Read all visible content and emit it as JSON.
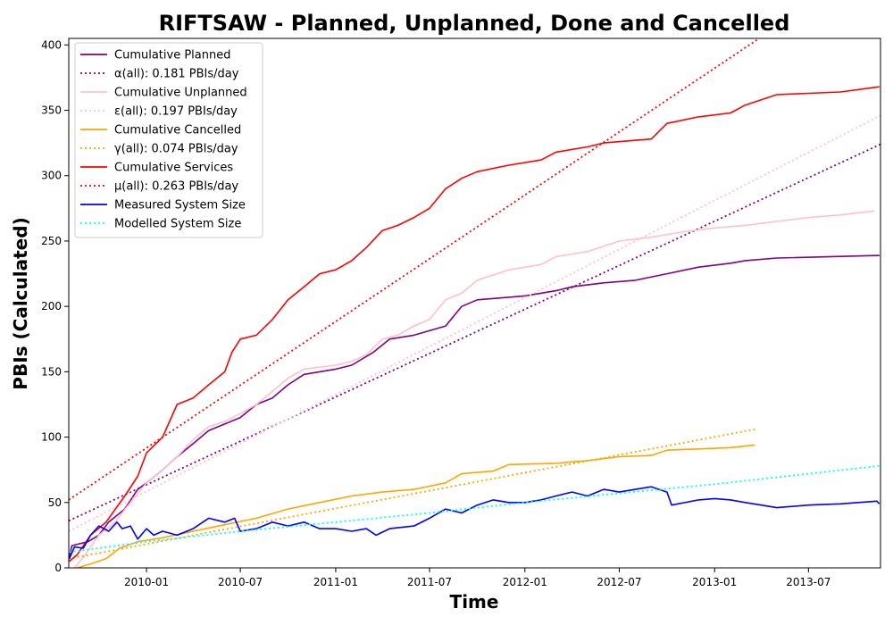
{
  "chart_data": {
    "type": "line",
    "title": "RIFTSAW - Planned, Unplanned, Done  and Cancelled",
    "xlabel": "Time",
    "ylabel": "PBIs (Calculated)",
    "xlim": [
      "2009-08-04",
      "2013-11-17"
    ],
    "ylim": [
      0,
      405
    ],
    "x_ticks": [
      "2010-01",
      "2010-07",
      "2011-01",
      "2011-07",
      "2012-01",
      "2012-07",
      "2013-01",
      "2013-07"
    ],
    "y_ticks": [
      0,
      50,
      100,
      150,
      200,
      250,
      300,
      350,
      400
    ],
    "grid": false,
    "legend_position": "top-left",
    "series": [
      {
        "name": "Cumulative Planned",
        "color": "#800080",
        "style": "solid",
        "points": [
          [
            "2009-08-05",
            8
          ],
          [
            "2009-08-10",
            17
          ],
          [
            "2009-09-10",
            20
          ],
          [
            "2009-10-01",
            25
          ],
          [
            "2009-10-20",
            35
          ],
          [
            "2009-11-20",
            45
          ],
          [
            "2009-12-15",
            60
          ],
          [
            "2010-01-01",
            65
          ],
          [
            "2010-02-01",
            75
          ],
          [
            "2010-03-01",
            85
          ],
          [
            "2010-04-01",
            95
          ],
          [
            "2010-05-01",
            105
          ],
          [
            "2010-06-01",
            110
          ],
          [
            "2010-07-01",
            115
          ],
          [
            "2010-08-01",
            125
          ],
          [
            "2010-09-01",
            130
          ],
          [
            "2010-10-01",
            140
          ],
          [
            "2010-11-01",
            148
          ],
          [
            "2011-01-01",
            152
          ],
          [
            "2011-02-01",
            155
          ],
          [
            "2011-03-15",
            165
          ],
          [
            "2011-04-15",
            175
          ],
          [
            "2011-06-01",
            178
          ],
          [
            "2011-08-01",
            185
          ],
          [
            "2011-09-01",
            200
          ],
          [
            "2011-10-01",
            205
          ],
          [
            "2012-01-01",
            208
          ],
          [
            "2012-03-01",
            212
          ],
          [
            "2012-04-01",
            215
          ],
          [
            "2012-06-01",
            218
          ],
          [
            "2012-08-01",
            220
          ],
          [
            "2012-10-01",
            225
          ],
          [
            "2012-12-01",
            230
          ],
          [
            "2013-02-01",
            233
          ],
          [
            "2013-03-01",
            235
          ],
          [
            "2013-05-01",
            237
          ],
          [
            "2013-11-15",
            239
          ]
        ]
      },
      {
        "name": "α(all): 0.181 PBIs/day",
        "color": "#800080",
        "style": "dotted",
        "points": [
          [
            "2009-08-04",
            36
          ],
          [
            "2013-11-17",
            324
          ]
        ]
      },
      {
        "name": "Cumulative Unplanned",
        "color": "#ffc0cb",
        "style": "solid",
        "points": [
          [
            "2009-08-15",
            0
          ],
          [
            "2009-09-01",
            8
          ],
          [
            "2009-10-01",
            25
          ],
          [
            "2009-11-01",
            35
          ],
          [
            "2009-12-01",
            50
          ],
          [
            "2010-01-01",
            65
          ],
          [
            "2010-02-01",
            75
          ],
          [
            "2010-03-01",
            85
          ],
          [
            "2010-04-01",
            98
          ],
          [
            "2010-05-01",
            108
          ],
          [
            "2010-06-01",
            112
          ],
          [
            "2010-07-01",
            118
          ],
          [
            "2010-08-01",
            125
          ],
          [
            "2010-09-01",
            135
          ],
          [
            "2010-10-01",
            145
          ],
          [
            "2010-11-01",
            152
          ],
          [
            "2011-01-01",
            155
          ],
          [
            "2011-02-01",
            158
          ],
          [
            "2011-03-01",
            163
          ],
          [
            "2011-04-01",
            175
          ],
          [
            "2011-05-01",
            178
          ],
          [
            "2011-06-01",
            185
          ],
          [
            "2011-07-01",
            190
          ],
          [
            "2011-08-01",
            205
          ],
          [
            "2011-09-01",
            210
          ],
          [
            "2011-10-01",
            220
          ],
          [
            "2011-12-01",
            228
          ],
          [
            "2012-02-01",
            232
          ],
          [
            "2012-03-01",
            238
          ],
          [
            "2012-05-01",
            242
          ],
          [
            "2012-07-01",
            250
          ],
          [
            "2012-09-01",
            253
          ],
          [
            "2012-11-01",
            257
          ],
          [
            "2013-01-01",
            260
          ],
          [
            "2013-03-01",
            262
          ],
          [
            "2013-05-01",
            265
          ],
          [
            "2013-07-01",
            268
          ],
          [
            "2013-09-01",
            270
          ],
          [
            "2013-11-05",
            273
          ]
        ]
      },
      {
        "name": "ε(all): 0.197 PBIs/day",
        "color": "#ffc0cb",
        "style": "dotted",
        "points": [
          [
            "2009-08-04",
            28
          ],
          [
            "2013-11-17",
            346
          ]
        ]
      },
      {
        "name": "Cumulative Cancelled",
        "color": "#ffa500",
        "style": "solid",
        "points": [
          [
            "2009-08-20",
            0
          ],
          [
            "2009-09-15",
            3
          ],
          [
            "2009-10-15",
            7
          ],
          [
            "2009-11-10",
            15
          ],
          [
            "2009-12-15",
            20
          ],
          [
            "2010-02-01",
            23
          ],
          [
            "2010-04-01",
            28
          ],
          [
            "2010-06-01",
            33
          ],
          [
            "2010-08-01",
            38
          ],
          [
            "2010-10-01",
            45
          ],
          [
            "2010-12-01",
            50
          ],
          [
            "2011-02-01",
            55
          ],
          [
            "2011-04-01",
            58
          ],
          [
            "2011-06-01",
            60
          ],
          [
            "2011-08-01",
            65
          ],
          [
            "2011-09-01",
            72
          ],
          [
            "2011-11-01",
            74
          ],
          [
            "2011-12-01",
            79
          ],
          [
            "2012-03-01",
            80
          ],
          [
            "2012-05-01",
            82
          ],
          [
            "2012-07-01",
            85
          ],
          [
            "2012-09-01",
            86
          ],
          [
            "2012-10-01",
            90
          ],
          [
            "2012-12-01",
            91
          ],
          [
            "2013-02-01",
            92
          ],
          [
            "2013-03-20",
            94
          ]
        ]
      },
      {
        "name": "γ(all): 0.074 PBIs/day",
        "color": "#ffa500",
        "style": "dotted",
        "points": [
          [
            "2009-08-04",
            7
          ],
          [
            "2013-03-20",
            106
          ]
        ]
      },
      {
        "name": "Cumulative Services",
        "color": "#ff0000",
        "style": "solid",
        "points": [
          [
            "2009-08-05",
            5
          ],
          [
            "2009-08-20",
            10
          ],
          [
            "2009-09-15",
            25
          ],
          [
            "2009-10-15",
            35
          ],
          [
            "2009-11-20",
            55
          ],
          [
            "2009-12-15",
            70
          ],
          [
            "2010-01-01",
            88
          ],
          [
            "2010-02-01",
            100
          ],
          [
            "2010-03-01",
            125
          ],
          [
            "2010-04-01",
            130
          ],
          [
            "2010-05-01",
            140
          ],
          [
            "2010-06-01",
            150
          ],
          [
            "2010-06-15",
            165
          ],
          [
            "2010-07-01",
            175
          ],
          [
            "2010-08-01",
            178
          ],
          [
            "2010-09-01",
            190
          ],
          [
            "2010-10-01",
            205
          ],
          [
            "2010-11-01",
            215
          ],
          [
            "2010-12-01",
            225
          ],
          [
            "2011-01-01",
            228
          ],
          [
            "2011-02-01",
            235
          ],
          [
            "2011-03-01",
            245
          ],
          [
            "2011-04-01",
            258
          ],
          [
            "2011-05-01",
            262
          ],
          [
            "2011-06-01",
            268
          ],
          [
            "2011-07-01",
            275
          ],
          [
            "2011-08-01",
            290
          ],
          [
            "2011-09-01",
            298
          ],
          [
            "2011-10-01",
            303
          ],
          [
            "2011-12-01",
            308
          ],
          [
            "2012-02-01",
            312
          ],
          [
            "2012-03-01",
            318
          ],
          [
            "2012-05-01",
            322
          ],
          [
            "2012-06-01",
            325
          ],
          [
            "2012-09-01",
            328
          ],
          [
            "2012-10-01",
            340
          ],
          [
            "2012-12-01",
            345
          ],
          [
            "2013-02-01",
            348
          ],
          [
            "2013-03-01",
            354
          ],
          [
            "2013-04-01",
            358
          ],
          [
            "2013-05-01",
            362
          ],
          [
            "2013-07-01",
            363
          ],
          [
            "2013-09-01",
            364
          ],
          [
            "2013-11-15",
            368
          ]
        ]
      },
      {
        "name": "μ(all): 0.263 PBIs/day",
        "color": "#ff0000",
        "style": "dotted",
        "points": [
          [
            "2009-08-04",
            52
          ],
          [
            "2013-11-17",
            467
          ]
        ]
      },
      {
        "name": "Measured System Size",
        "color": "#0000ff",
        "style": "solid",
        "points": [
          [
            "2009-08-05",
            7
          ],
          [
            "2009-08-15",
            16
          ],
          [
            "2009-09-01",
            15
          ],
          [
            "2009-09-15",
            25
          ],
          [
            "2009-10-01",
            32
          ],
          [
            "2009-10-20",
            28
          ],
          [
            "2009-11-05",
            35
          ],
          [
            "2009-11-15",
            30
          ],
          [
            "2009-12-01",
            32
          ],
          [
            "2009-12-15",
            22
          ],
          [
            "2010-01-01",
            30
          ],
          [
            "2010-01-15",
            25
          ],
          [
            "2010-02-01",
            28
          ],
          [
            "2010-03-01",
            25
          ],
          [
            "2010-04-01",
            30
          ],
          [
            "2010-05-01",
            38
          ],
          [
            "2010-06-01",
            35
          ],
          [
            "2010-06-20",
            38
          ],
          [
            "2010-07-01",
            28
          ],
          [
            "2010-08-01",
            30
          ],
          [
            "2010-09-01",
            35
          ],
          [
            "2010-10-01",
            32
          ],
          [
            "2010-11-01",
            35
          ],
          [
            "2010-12-01",
            30
          ],
          [
            "2011-01-01",
            30
          ],
          [
            "2011-02-01",
            28
          ],
          [
            "2011-03-01",
            30
          ],
          [
            "2011-03-20",
            25
          ],
          [
            "2011-04-15",
            30
          ],
          [
            "2011-06-01",
            32
          ],
          [
            "2011-07-01",
            38
          ],
          [
            "2011-08-01",
            45
          ],
          [
            "2011-09-01",
            42
          ],
          [
            "2011-10-01",
            48
          ],
          [
            "2011-11-01",
            52
          ],
          [
            "2011-12-01",
            50
          ],
          [
            "2012-01-01",
            50
          ],
          [
            "2012-02-01",
            52
          ],
          [
            "2012-03-01",
            55
          ],
          [
            "2012-04-01",
            58
          ],
          [
            "2012-05-01",
            55
          ],
          [
            "2012-06-01",
            60
          ],
          [
            "2012-07-01",
            58
          ],
          [
            "2012-08-01",
            60
          ],
          [
            "2012-09-01",
            62
          ],
          [
            "2012-10-01",
            58
          ],
          [
            "2012-10-10",
            48
          ],
          [
            "2012-12-01",
            52
          ],
          [
            "2013-01-01",
            53
          ],
          [
            "2013-02-01",
            52
          ],
          [
            "2013-03-01",
            50
          ],
          [
            "2013-04-01",
            48
          ],
          [
            "2013-05-01",
            46
          ],
          [
            "2013-07-01",
            48
          ],
          [
            "2013-09-01",
            49
          ],
          [
            "2013-11-10",
            51
          ],
          [
            "2013-11-15",
            49
          ]
        ]
      },
      {
        "name": "Modelled System Size",
        "color": "#00ffff",
        "style": "dotted",
        "points": [
          [
            "2009-08-05",
            12
          ],
          [
            "2010-01-01",
            20
          ],
          [
            "2010-07-01",
            28
          ],
          [
            "2011-01-01",
            35
          ],
          [
            "2011-07-01",
            42
          ],
          [
            "2012-01-01",
            50
          ],
          [
            "2012-07-01",
            57
          ],
          [
            "2013-01-01",
            64
          ],
          [
            "2013-07-01",
            72
          ],
          [
            "2013-11-15",
            78
          ]
        ]
      }
    ]
  }
}
